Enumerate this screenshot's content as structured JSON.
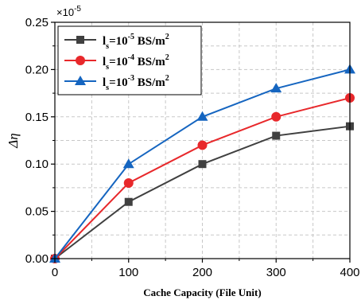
{
  "chart_data": {
    "type": "line",
    "title": "",
    "xlabel": "Cache Capacity (File Unit)",
    "ylabel": "Δη",
    "y_multiplier": "×10",
    "y_multiplier_exp": "-5",
    "x": [
      0,
      100,
      200,
      300,
      400
    ],
    "xlim": [
      0,
      400
    ],
    "ylim": [
      0,
      0.25
    ],
    "xticks": [
      "0",
      "100",
      "200",
      "300",
      "400"
    ],
    "yticks": [
      "0.00",
      "0.05",
      "0.10",
      "0.15",
      "0.20",
      "0.25"
    ],
    "grid": true,
    "legend_position": "top-left",
    "series": [
      {
        "name": "l_s=10^-5 BS/m^2",
        "label_main": "l",
        "label_sub": "s",
        "label_eq": "=10",
        "label_exp": "-5",
        "label_unit": " BS/m",
        "label_unit_exp": "2",
        "color": "#404040",
        "marker": "square",
        "values": [
          0,
          0.06,
          0.1,
          0.13,
          0.14
        ]
      },
      {
        "name": "l_s=10^-4 BS/m^2",
        "label_main": "l",
        "label_sub": "s",
        "label_eq": "=10",
        "label_exp": "-4",
        "label_unit": " BS/m",
        "label_unit_exp": "2",
        "color": "#e8282b",
        "marker": "circle",
        "values": [
          0,
          0.08,
          0.12,
          0.15,
          0.17
        ]
      },
      {
        "name": "l_s=10^-3 BS/m^2",
        "label_main": "l",
        "label_sub": "s",
        "label_eq": "=10",
        "label_exp": "-3",
        "label_unit": " BS/m",
        "label_unit_exp": "2",
        "color": "#1565c0",
        "marker": "triangle",
        "values": [
          0,
          0.1,
          0.15,
          0.18,
          0.2
        ]
      }
    ]
  }
}
